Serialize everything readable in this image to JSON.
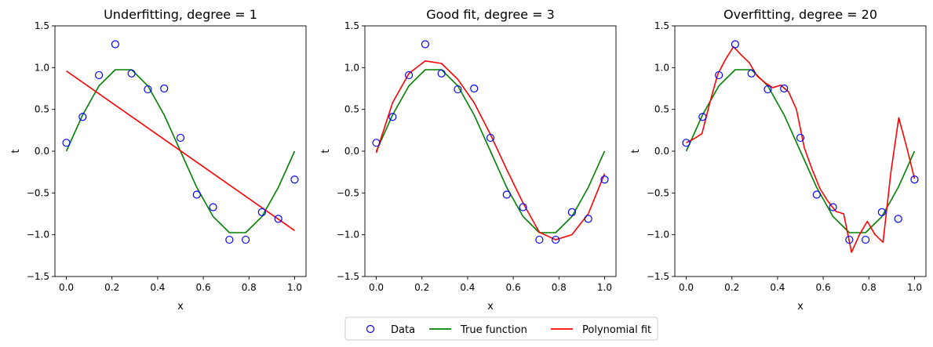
{
  "legend": {
    "items": [
      {
        "label": "Data",
        "kind": "marker",
        "color": "#0000ff"
      },
      {
        "label": "True function",
        "kind": "line",
        "color": "#008000"
      },
      {
        "label": "Polynomial fit",
        "kind": "line",
        "color": "#ff0000"
      }
    ],
    "placement": "bottom-center",
    "ncol": 3
  },
  "chart_data": [
    {
      "type": "line",
      "title": "Underfitting, degree = 1",
      "xlabel": "x",
      "ylabel": "t",
      "xlim": [
        -0.05,
        1.05
      ],
      "ylim": [
        -1.5,
        1.5
      ],
      "xticks": [
        0.0,
        0.2,
        0.4,
        0.6,
        0.8,
        1.0
      ],
      "xtick_labels": [
        "0.0",
        "0.2",
        "0.4",
        "0.6",
        "0.8",
        "1.0"
      ],
      "yticks": [
        -1.5,
        -1.0,
        -0.5,
        0.0,
        0.5,
        1.0,
        1.5
      ],
      "ytick_labels": [
        "−1.5",
        "−1.0",
        "−0.5",
        "0.0",
        "0.5",
        "1.0",
        "1.5"
      ],
      "grid": false,
      "data_points": {
        "x": [
          0.0,
          0.0714,
          0.1429,
          0.2143,
          0.2857,
          0.3571,
          0.4286,
          0.5,
          0.5714,
          0.6429,
          0.7143,
          0.7857,
          0.8571,
          0.9286,
          1.0
        ],
        "y": [
          0.1,
          0.41,
          0.91,
          1.28,
          0.93,
          0.74,
          0.75,
          0.16,
          -0.52,
          -0.67,
          -1.06,
          -1.06,
          -0.73,
          -0.81,
          -0.34
        ],
        "color": "#0000ff"
      },
      "true_function": {
        "x": [
          0.0,
          0.0714,
          0.1429,
          0.2143,
          0.2857,
          0.3571,
          0.4286,
          0.5,
          0.5714,
          0.6429,
          0.7143,
          0.7857,
          0.8571,
          0.9286,
          1.0
        ],
        "y": [
          0.0,
          0.434,
          0.782,
          0.975,
          0.975,
          0.782,
          0.434,
          0.0,
          -0.434,
          -0.782,
          -0.975,
          -0.975,
          -0.782,
          -0.434,
          0.0
        ],
        "color": "#008000"
      },
      "fit": {
        "x": [
          0.0,
          1.0
        ],
        "y": [
          0.96,
          -0.95
        ],
        "color": "#ff0000"
      }
    },
    {
      "type": "line",
      "title": "Good fit, degree = 3",
      "xlabel": "x",
      "ylabel": "t",
      "xlim": [
        -0.05,
        1.05
      ],
      "ylim": [
        -1.5,
        1.5
      ],
      "xticks": [
        0.0,
        0.2,
        0.4,
        0.6,
        0.8,
        1.0
      ],
      "xtick_labels": [
        "0.0",
        "0.2",
        "0.4",
        "0.6",
        "0.8",
        "1.0"
      ],
      "yticks": [
        -1.5,
        -1.0,
        -0.5,
        0.0,
        0.5,
        1.0,
        1.5
      ],
      "ytick_labels": [
        "−1.5",
        "−1.0",
        "−0.5",
        "0.0",
        "0.5",
        "1.0",
        "1.5"
      ],
      "grid": false,
      "data_points": {
        "x": [
          0.0,
          0.0714,
          0.1429,
          0.2143,
          0.2857,
          0.3571,
          0.4286,
          0.5,
          0.5714,
          0.6429,
          0.7143,
          0.7857,
          0.8571,
          0.9286,
          1.0
        ],
        "y": [
          0.1,
          0.41,
          0.91,
          1.28,
          0.93,
          0.74,
          0.75,
          0.16,
          -0.52,
          -0.67,
          -1.06,
          -1.06,
          -0.73,
          -0.81,
          -0.34
        ],
        "color": "#0000ff"
      },
      "true_function": {
        "x": [
          0.0,
          0.0714,
          0.1429,
          0.2143,
          0.2857,
          0.3571,
          0.4286,
          0.5,
          0.5714,
          0.6429,
          0.7143,
          0.7857,
          0.8571,
          0.9286,
          1.0
        ],
        "y": [
          0.0,
          0.434,
          0.782,
          0.975,
          0.975,
          0.782,
          0.434,
          0.0,
          -0.434,
          -0.782,
          -0.975,
          -0.975,
          -0.782,
          -0.434,
          0.0
        ],
        "color": "#008000"
      },
      "fit": {
        "x": [
          0.0,
          0.0714,
          0.1429,
          0.2143,
          0.2857,
          0.3571,
          0.4286,
          0.5,
          0.5714,
          0.6429,
          0.7143,
          0.7857,
          0.8571,
          0.9286,
          1.0
        ],
        "y": [
          -0.02,
          0.58,
          0.93,
          1.08,
          1.05,
          0.86,
          0.58,
          0.2,
          -0.22,
          -0.62,
          -0.97,
          -1.06,
          -1.0,
          -0.75,
          -0.27
        ],
        "color": "#ff0000"
      }
    },
    {
      "type": "line",
      "title": "Overfitting, degree = 20",
      "xlabel": "x",
      "ylabel": "t",
      "xlim": [
        -0.05,
        1.05
      ],
      "ylim": [
        -1.5,
        1.5
      ],
      "xticks": [
        0.0,
        0.2,
        0.4,
        0.6,
        0.8,
        1.0
      ],
      "xtick_labels": [
        "0.0",
        "0.2",
        "0.4",
        "0.6",
        "0.8",
        "1.0"
      ],
      "yticks": [
        -1.5,
        -1.0,
        -0.5,
        0.0,
        0.5,
        1.0,
        1.5
      ],
      "ytick_labels": [
        "−1.5",
        "−1.0",
        "−0.5",
        "0.0",
        "0.5",
        "1.0",
        "1.5"
      ],
      "grid": false,
      "data_points": {
        "x": [
          0.0,
          0.0714,
          0.1429,
          0.2143,
          0.2857,
          0.3571,
          0.4286,
          0.5,
          0.5714,
          0.6429,
          0.7143,
          0.7857,
          0.8571,
          0.9286,
          1.0
        ],
        "y": [
          0.1,
          0.41,
          0.91,
          1.28,
          0.93,
          0.74,
          0.75,
          0.16,
          -0.52,
          -0.67,
          -1.06,
          -1.06,
          -0.73,
          -0.81,
          -0.34
        ],
        "color": "#0000ff"
      },
      "true_function": {
        "x": [
          0.0,
          0.0714,
          0.1429,
          0.2143,
          0.2857,
          0.3571,
          0.4286,
          0.5,
          0.5714,
          0.6429,
          0.7143,
          0.7857,
          0.8571,
          0.9286,
          1.0
        ],
        "y": [
          0.0,
          0.434,
          0.782,
          0.975,
          0.975,
          0.782,
          0.434,
          0.0,
          -0.434,
          -0.782,
          -0.975,
          -0.975,
          -0.782,
          -0.434,
          0.0
        ],
        "color": "#008000"
      },
      "fit": {
        "x": [
          0.0,
          0.0345,
          0.069,
          0.1034,
          0.1379,
          0.1724,
          0.2069,
          0.2414,
          0.2759,
          0.3103,
          0.3448,
          0.3793,
          0.4138,
          0.4483,
          0.4828,
          0.5172,
          0.5517,
          0.5862,
          0.6207,
          0.6552,
          0.6897,
          0.7241,
          0.7586,
          0.7931,
          0.8276,
          0.8621,
          0.8966,
          0.931,
          0.9655,
          1.0
        ],
        "y": [
          0.1,
          0.15,
          0.21,
          0.58,
          0.92,
          1.1,
          1.25,
          1.15,
          1.06,
          0.9,
          0.82,
          0.76,
          0.79,
          0.71,
          0.5,
          0.04,
          -0.22,
          -0.45,
          -0.6,
          -0.72,
          -0.75,
          -1.21,
          -1.0,
          -0.84,
          -1.0,
          -1.09,
          -0.25,
          0.4,
          0.05,
          -0.33
        ],
        "color": "#ff0000"
      }
    }
  ]
}
